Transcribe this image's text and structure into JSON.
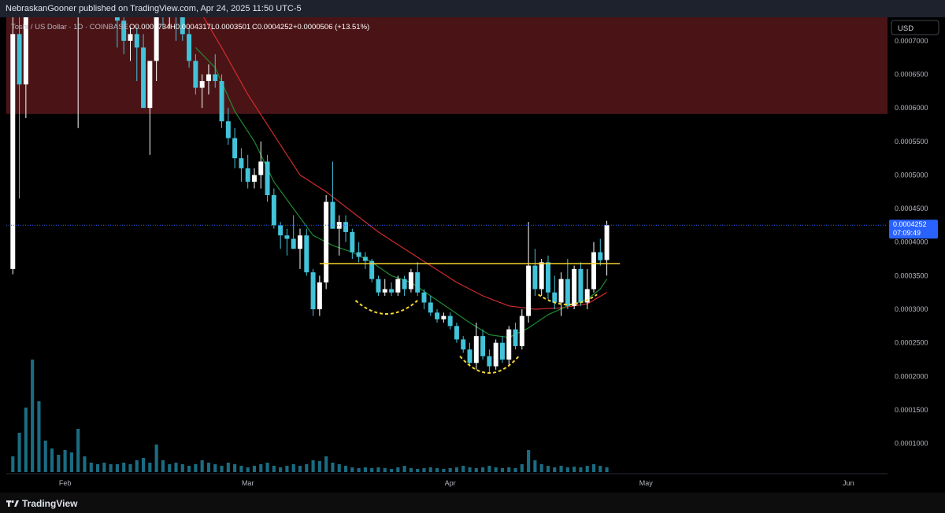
{
  "header": {
    "publish_line": "NebraskanGooner published on TradingView.com, Apr 24, 2025 11:50 UTC-5"
  },
  "legend": {
    "symbol": "Toshi / US Dollar · 1D · COINBASE",
    "open": "O0.0003734",
    "high": "H0.0004317",
    "low": "L0.0003501",
    "close": "C0.0004252",
    "change": "+0.0000506 (+13.51%)"
  },
  "currency_button": "USD",
  "price_tag": {
    "price": "0.0004252",
    "countdown": "07:09:49"
  },
  "footer": {
    "brand": "TradingView"
  },
  "colors": {
    "background": "#000000",
    "candle_up": "#ffffff",
    "candle_down": "#42c3d9",
    "resistance_zone": "#4a1417",
    "neckline": "#f3d32e",
    "ema_fast": "#1f8a32",
    "ema_slow": "#d22b2b",
    "price_line": "#2962ff"
  },
  "chart_data": {
    "type": "candlestick",
    "timeframe": "1D",
    "price_scale": {
      "ticks": [
        "0.0007000",
        "0.0006500",
        "0.0006000",
        "0.0005500",
        "0.0005000",
        "0.0004500",
        "0.0004000",
        "0.0003500",
        "0.0003000",
        "0.0002500",
        "0.0002000",
        "0.0001500",
        "0.0001000"
      ],
      "range": [
        5.5e-05,
        0.000735
      ]
    },
    "time_axis": {
      "labels": [
        {
          "text": "Feb",
          "day": 8
        },
        {
          "text": "Mar",
          "day": 36
        },
        {
          "text": "Apr",
          "day": 67
        },
        {
          "text": "May",
          "day": 97
        },
        {
          "text": "Jun",
          "day": 128
        }
      ],
      "day_range": [
        -1,
        134
      ]
    },
    "candles": [
      {
        "d": 0,
        "o": 0.00036,
        "h": 0.00074,
        "l": 0.000352,
        "c": 0.00071
      },
      {
        "d": 1,
        "o": 0.00071,
        "h": 0.00076,
        "l": 0.000465,
        "c": 0.000635
      },
      {
        "d": 2,
        "o": 0.000635,
        "h": 0.00076,
        "l": 0.000585,
        "c": 0.00076
      },
      {
        "d": 10,
        "o": 0.00076,
        "h": 0.00078,
        "l": 0.00057,
        "c": 0.00076
      },
      {
        "d": 16,
        "o": 0.00078,
        "h": 0.00079,
        "l": 0.00069,
        "c": 0.00073
      },
      {
        "d": 17,
        "o": 0.00073,
        "h": 0.00076,
        "l": 0.00068,
        "c": 0.0007
      },
      {
        "d": 18,
        "o": 0.0007,
        "h": 0.00072,
        "l": 0.00067,
        "c": 0.00071
      },
      {
        "d": 19,
        "o": 0.00071,
        "h": 0.00072,
        "l": 0.00064,
        "c": 0.00069
      },
      {
        "d": 20,
        "o": 0.00069,
        "h": 0.00071,
        "l": 0.0006,
        "c": 0.0006
      },
      {
        "d": 21,
        "o": 0.0006,
        "h": 0.00067,
        "l": 0.00053,
        "c": 0.00067
      },
      {
        "d": 22,
        "o": 0.00067,
        "h": 0.00079,
        "l": 0.00064,
        "c": 0.00078
      },
      {
        "d": 23,
        "o": 0.00078,
        "h": 0.00079,
        "l": 0.00072,
        "c": 0.00074
      },
      {
        "d": 24,
        "o": 0.00074,
        "h": 0.00079,
        "l": 0.00072,
        "c": 0.00078
      },
      {
        "d": 25,
        "o": 0.00078,
        "h": 0.00079,
        "l": 0.0007,
        "c": 0.00074
      },
      {
        "d": 26,
        "o": 0.00074,
        "h": 0.00076,
        "l": 0.0007,
        "c": 0.00071
      },
      {
        "d": 27,
        "o": 0.00071,
        "h": 0.00072,
        "l": 0.00066,
        "c": 0.00067
      },
      {
        "d": 28,
        "o": 0.00067,
        "h": 0.00068,
        "l": 0.00062,
        "c": 0.00063
      },
      {
        "d": 29,
        "o": 0.00063,
        "h": 0.00065,
        "l": 0.0006,
        "c": 0.00064
      },
      {
        "d": 30,
        "o": 0.00064,
        "h": 0.000665,
        "l": 0.00062,
        "c": 0.00065
      },
      {
        "d": 31,
        "o": 0.00065,
        "h": 0.00068,
        "l": 0.00063,
        "c": 0.00064
      },
      {
        "d": 32,
        "o": 0.00064,
        "h": 0.00065,
        "l": 0.00057,
        "c": 0.00058
      },
      {
        "d": 33,
        "o": 0.00058,
        "h": 0.0006,
        "l": 0.000545,
        "c": 0.000555
      },
      {
        "d": 34,
        "o": 0.000555,
        "h": 0.00057,
        "l": 0.00051,
        "c": 0.000525
      },
      {
        "d": 35,
        "o": 0.000525,
        "h": 0.00054,
        "l": 0.00049,
        "c": 0.00051
      },
      {
        "d": 36,
        "o": 0.00051,
        "h": 0.00053,
        "l": 0.00048,
        "c": 0.00049
      },
      {
        "d": 37,
        "o": 0.00049,
        "h": 0.00051,
        "l": 0.00048,
        "c": 0.0005
      },
      {
        "d": 38,
        "o": 0.0005,
        "h": 0.00055,
        "l": 0.00048,
        "c": 0.00052
      },
      {
        "d": 39,
        "o": 0.00052,
        "h": 0.00053,
        "l": 0.00046,
        "c": 0.00047
      },
      {
        "d": 40,
        "o": 0.00047,
        "h": 0.00048,
        "l": 0.00042,
        "c": 0.000425
      },
      {
        "d": 41,
        "o": 0.000425,
        "h": 0.00043,
        "l": 0.00039,
        "c": 0.00041
      },
      {
        "d": 42,
        "o": 0.00041,
        "h": 0.00042,
        "l": 0.00038,
        "c": 0.000405
      },
      {
        "d": 43,
        "o": 0.000405,
        "h": 0.00044,
        "l": 0.00039,
        "c": 0.00039
      },
      {
        "d": 44,
        "o": 0.00039,
        "h": 0.00042,
        "l": 0.00036,
        "c": 0.00041
      },
      {
        "d": 45,
        "o": 0.00041,
        "h": 0.00042,
        "l": 0.00035,
        "c": 0.000355
      },
      {
        "d": 46,
        "o": 0.000355,
        "h": 0.00036,
        "l": 0.00029,
        "c": 0.0003
      },
      {
        "d": 47,
        "o": 0.0003,
        "h": 0.00035,
        "l": 0.00029,
        "c": 0.00034
      },
      {
        "d": 48,
        "o": 0.00034,
        "h": 0.00047,
        "l": 0.00033,
        "c": 0.00046
      },
      {
        "d": 49,
        "o": 0.00046,
        "h": 0.00052,
        "l": 0.00042,
        "c": 0.00042
      },
      {
        "d": 50,
        "o": 0.00042,
        "h": 0.00044,
        "l": 0.00038,
        "c": 0.00043
      },
      {
        "d": 51,
        "o": 0.00043,
        "h": 0.00044,
        "l": 0.0004,
        "c": 0.000415
      },
      {
        "d": 52,
        "o": 0.000415,
        "h": 0.00042,
        "l": 0.000375,
        "c": 0.000385
      },
      {
        "d": 53,
        "o": 0.000385,
        "h": 0.0004,
        "l": 0.00037,
        "c": 0.000378
      },
      {
        "d": 54,
        "o": 0.000378,
        "h": 0.000385,
        "l": 0.00036,
        "c": 0.000372
      },
      {
        "d": 55,
        "o": 0.000372,
        "h": 0.000375,
        "l": 0.00034,
        "c": 0.000345
      },
      {
        "d": 56,
        "o": 0.000345,
        "h": 0.00035,
        "l": 0.00032,
        "c": 0.000325
      },
      {
        "d": 57,
        "o": 0.000325,
        "h": 0.000345,
        "l": 0.00032,
        "c": 0.00033
      },
      {
        "d": 58,
        "o": 0.00033,
        "h": 0.00034,
        "l": 0.00032,
        "c": 0.000325
      },
      {
        "d": 59,
        "o": 0.000325,
        "h": 0.00035,
        "l": 0.00032,
        "c": 0.000345
      },
      {
        "d": 60,
        "o": 0.000345,
        "h": 0.00035,
        "l": 0.00032,
        "c": 0.00033
      },
      {
        "d": 61,
        "o": 0.00033,
        "h": 0.00036,
        "l": 0.000325,
        "c": 0.000355
      },
      {
        "d": 62,
        "o": 0.000355,
        "h": 0.00037,
        "l": 0.00032,
        "c": 0.000325
      },
      {
        "d": 63,
        "o": 0.000325,
        "h": 0.00033,
        "l": 0.0003,
        "c": 0.00031
      },
      {
        "d": 64,
        "o": 0.00031,
        "h": 0.00032,
        "l": 0.00029,
        "c": 0.000295
      },
      {
        "d": 65,
        "o": 0.000295,
        "h": 0.0003,
        "l": 0.00028,
        "c": 0.000285
      },
      {
        "d": 66,
        "o": 0.000285,
        "h": 0.000295,
        "l": 0.00028,
        "c": 0.00029
      },
      {
        "d": 67,
        "o": 0.00029,
        "h": 0.000295,
        "l": 0.00027,
        "c": 0.000275
      },
      {
        "d": 68,
        "o": 0.000275,
        "h": 0.00028,
        "l": 0.00025,
        "c": 0.000255
      },
      {
        "d": 69,
        "o": 0.000255,
        "h": 0.00026,
        "l": 0.000235,
        "c": 0.00024
      },
      {
        "d": 70,
        "o": 0.00024,
        "h": 0.00025,
        "l": 0.000215,
        "c": 0.00022
      },
      {
        "d": 71,
        "o": 0.00022,
        "h": 0.00028,
        "l": 0.00021,
        "c": 0.00026
      },
      {
        "d": 72,
        "o": 0.00026,
        "h": 0.00027,
        "l": 0.000225,
        "c": 0.00023
      },
      {
        "d": 73,
        "o": 0.00023,
        "h": 0.00024,
        "l": 0.000205,
        "c": 0.000215
      },
      {
        "d": 74,
        "o": 0.000215,
        "h": 0.000255,
        "l": 0.00021,
        "c": 0.00025
      },
      {
        "d": 75,
        "o": 0.00025,
        "h": 0.00026,
        "l": 0.00022,
        "c": 0.000225
      },
      {
        "d": 76,
        "o": 0.000225,
        "h": 0.000275,
        "l": 0.000215,
        "c": 0.00027
      },
      {
        "d": 77,
        "o": 0.00027,
        "h": 0.00028,
        "l": 0.00024,
        "c": 0.000245
      },
      {
        "d": 78,
        "o": 0.000245,
        "h": 0.0003,
        "l": 0.00024,
        "c": 0.00029
      },
      {
        "d": 79,
        "o": 0.00029,
        "h": 0.00043,
        "l": 0.00028,
        "c": 0.000365
      },
      {
        "d": 80,
        "o": 0.000365,
        "h": 0.00039,
        "l": 0.00032,
        "c": 0.00033
      },
      {
        "d": 81,
        "o": 0.00033,
        "h": 0.000375,
        "l": 0.00032,
        "c": 0.00037
      },
      {
        "d": 82,
        "o": 0.00037,
        "h": 0.00038,
        "l": 0.000315,
        "c": 0.000325
      },
      {
        "d": 83,
        "o": 0.000325,
        "h": 0.00035,
        "l": 0.0003,
        "c": 0.00031
      },
      {
        "d": 84,
        "o": 0.00031,
        "h": 0.000355,
        "l": 0.00029,
        "c": 0.000345
      },
      {
        "d": 85,
        "o": 0.000345,
        "h": 0.000375,
        "l": 0.0003,
        "c": 0.000305
      },
      {
        "d": 86,
        "o": 0.000305,
        "h": 0.000365,
        "l": 0.0003,
        "c": 0.00036
      },
      {
        "d": 87,
        "o": 0.00036,
        "h": 0.00037,
        "l": 0.000305,
        "c": 0.00031
      },
      {
        "d": 88,
        "o": 0.00031,
        "h": 0.00036,
        "l": 0.0003,
        "c": 0.00033
      },
      {
        "d": 89,
        "o": 0.00033,
        "h": 0.0004,
        "l": 0.000325,
        "c": 0.000385
      },
      {
        "d": 90,
        "o": 0.000385,
        "h": 0.000405,
        "l": 0.000365,
        "c": 0.000373
      },
      {
        "d": 91,
        "o": 0.0003734,
        "h": 0.0004317,
        "l": 0.0003501,
        "c": 0.0004252
      }
    ],
    "volume_bars": [
      {
        "d": 0,
        "v": 20
      },
      {
        "d": 1,
        "v": 50
      },
      {
        "d": 2,
        "v": 82
      },
      {
        "d": 3,
        "v": 143
      },
      {
        "d": 4,
        "v": 90
      },
      {
        "d": 5,
        "v": 40
      },
      {
        "d": 6,
        "v": 30
      },
      {
        "d": 7,
        "v": 22
      },
      {
        "d": 8,
        "v": 28
      },
      {
        "d": 9,
        "v": 25
      },
      {
        "d": 10,
        "v": 55
      },
      {
        "d": 11,
        "v": 20
      },
      {
        "d": 12,
        "v": 12
      },
      {
        "d": 13,
        "v": 10
      },
      {
        "d": 14,
        "v": 12
      },
      {
        "d": 15,
        "v": 10
      },
      {
        "d": 16,
        "v": 10
      },
      {
        "d": 17,
        "v": 12
      },
      {
        "d": 18,
        "v": 10
      },
      {
        "d": 19,
        "v": 15
      },
      {
        "d": 20,
        "v": 18
      },
      {
        "d": 21,
        "v": 12
      },
      {
        "d": 22,
        "v": 35
      },
      {
        "d": 23,
        "v": 15
      },
      {
        "d": 24,
        "v": 10
      },
      {
        "d": 25,
        "v": 12
      },
      {
        "d": 26,
        "v": 10
      },
      {
        "d": 27,
        "v": 8
      },
      {
        "d": 28,
        "v": 10
      },
      {
        "d": 29,
        "v": 15
      },
      {
        "d": 30,
        "v": 12
      },
      {
        "d": 31,
        "v": 10
      },
      {
        "d": 32,
        "v": 8
      },
      {
        "d": 33,
        "v": 12
      },
      {
        "d": 34,
        "v": 10
      },
      {
        "d": 35,
        "v": 8
      },
      {
        "d": 36,
        "v": 6
      },
      {
        "d": 37,
        "v": 8
      },
      {
        "d": 38,
        "v": 10
      },
      {
        "d": 39,
        "v": 12
      },
      {
        "d": 40,
        "v": 8
      },
      {
        "d": 41,
        "v": 6
      },
      {
        "d": 42,
        "v": 8
      },
      {
        "d": 43,
        "v": 10
      },
      {
        "d": 44,
        "v": 8
      },
      {
        "d": 45,
        "v": 10
      },
      {
        "d": 46,
        "v": 15
      },
      {
        "d": 47,
        "v": 14
      },
      {
        "d": 48,
        "v": 20
      },
      {
        "d": 49,
        "v": 12
      },
      {
        "d": 50,
        "v": 10
      },
      {
        "d": 51,
        "v": 8
      },
      {
        "d": 52,
        "v": 6
      },
      {
        "d": 53,
        "v": 5
      },
      {
        "d": 54,
        "v": 6
      },
      {
        "d": 55,
        "v": 5
      },
      {
        "d": 56,
        "v": 6
      },
      {
        "d": 57,
        "v": 5
      },
      {
        "d": 58,
        "v": 4
      },
      {
        "d": 59,
        "v": 6
      },
      {
        "d": 60,
        "v": 8
      },
      {
        "d": 61,
        "v": 5
      },
      {
        "d": 62,
        "v": 4
      },
      {
        "d": 63,
        "v": 5
      },
      {
        "d": 64,
        "v": 6
      },
      {
        "d": 65,
        "v": 5
      },
      {
        "d": 66,
        "v": 4
      },
      {
        "d": 67,
        "v": 5
      },
      {
        "d": 68,
        "v": 6
      },
      {
        "d": 69,
        "v": 8
      },
      {
        "d": 70,
        "v": 6
      },
      {
        "d": 71,
        "v": 5
      },
      {
        "d": 72,
        "v": 6
      },
      {
        "d": 73,
        "v": 8
      },
      {
        "d": 74,
        "v": 6
      },
      {
        "d": 75,
        "v": 5
      },
      {
        "d": 76,
        "v": 6
      },
      {
        "d": 77,
        "v": 5
      },
      {
        "d": 78,
        "v": 10
      },
      {
        "d": 79,
        "v": 28
      },
      {
        "d": 80,
        "v": 15
      },
      {
        "d": 81,
        "v": 10
      },
      {
        "d": 82,
        "v": 8
      },
      {
        "d": 83,
        "v": 6
      },
      {
        "d": 84,
        "v": 8
      },
      {
        "d": 85,
        "v": 6
      },
      {
        "d": 86,
        "v": 7
      },
      {
        "d": 87,
        "v": 6
      },
      {
        "d": 88,
        "v": 8
      },
      {
        "d": 89,
        "v": 10
      },
      {
        "d": 90,
        "v": 8
      },
      {
        "d": 91,
        "v": 6
      }
    ],
    "volume_max": 150,
    "resistance_zone": {
      "from": 0.000591,
      "to": 0.000735
    },
    "neckline": {
      "price": 0.000368,
      "from_day": 47,
      "to_day": 93
    },
    "rounded_bottoms": [
      {
        "from_day": 52.5,
        "to_day": 62,
        "price": 0.000313,
        "depth": 2e-05
      },
      {
        "from_day": 68.5,
        "to_day": 77.5,
        "price": 0.00023,
        "depth": 2.5e-05
      },
      {
        "from_day": 80.5,
        "to_day": 89.5,
        "price": 0.000322,
        "depth": 1.5e-05
      }
    ],
    "ema_fast": [
      [
        28,
        0.00069
      ],
      [
        31,
        0.00066
      ],
      [
        34,
        0.000595
      ],
      [
        37,
        0.00055
      ],
      [
        40,
        0.00049
      ],
      [
        43,
        0.00045
      ],
      [
        46,
        0.00041
      ],
      [
        49,
        0.000395
      ],
      [
        52,
        0.000385
      ],
      [
        55,
        0.00037
      ],
      [
        58,
        0.00035
      ],
      [
        61,
        0.00034
      ],
      [
        64,
        0.00032
      ],
      [
        67,
        0.0003
      ],
      [
        70,
        0.00028
      ],
      [
        73,
        0.000262
      ],
      [
        76,
        0.000258
      ],
      [
        79,
        0.000272
      ],
      [
        82,
        0.000292
      ],
      [
        85,
        0.000305
      ],
      [
        88,
        0.000315
      ],
      [
        90,
        0.00033
      ],
      [
        91,
        0.000345
      ]
    ],
    "ema_slow": [
      [
        24,
        0.00078
      ],
      [
        28,
        0.000755
      ],
      [
        32,
        0.00069
      ],
      [
        36,
        0.00062
      ],
      [
        40,
        0.00056
      ],
      [
        44,
        0.0005
      ],
      [
        48,
        0.000475
      ],
      [
        52,
        0.000445
      ],
      [
        56,
        0.000415
      ],
      [
        60,
        0.00039
      ],
      [
        64,
        0.000365
      ],
      [
        68,
        0.00034
      ],
      [
        72,
        0.00032
      ],
      [
        76,
        0.000305
      ],
      [
        80,
        0.0003
      ],
      [
        84,
        0.000302
      ],
      [
        88,
        0.000308
      ],
      [
        91,
        0.000325
      ]
    ],
    "last_price": 0.0004252
  }
}
